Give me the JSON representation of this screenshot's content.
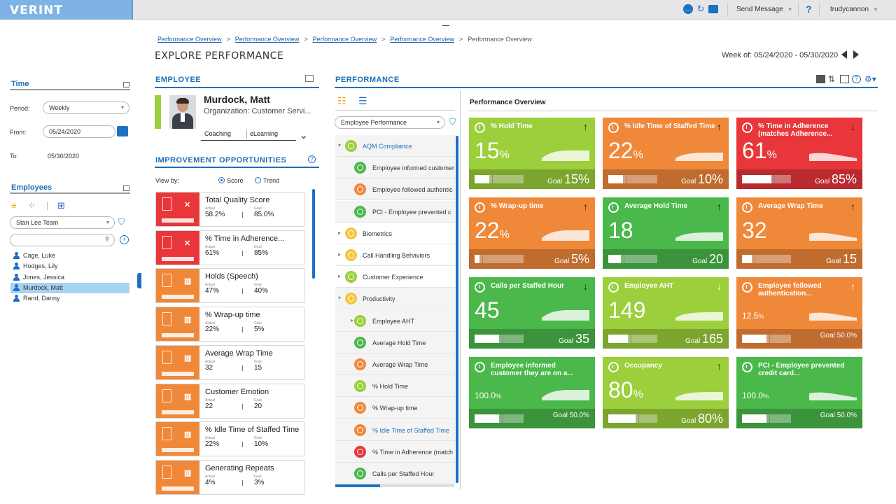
{
  "header": {
    "logo": "VERINT",
    "send_message": "Send Message",
    "help": "?",
    "user": "trudycannon"
  },
  "left": {
    "time_title": "Time",
    "period_label": "Period:",
    "period_value": "Weekly",
    "from_label": "From:",
    "from_value": "05/24/2020",
    "to_label": "To:",
    "to_value": "05/30/2020",
    "employees_title": "Employees",
    "team_value": "Stan Lee Team",
    "search_placeholder": "",
    "employees": [
      "Cage, Luke",
      "Hodges, Lily",
      "Jones, Jessica",
      "Murdock, Matt",
      "Rand, Danny"
    ],
    "selected_employee": "Murdock, Matt"
  },
  "breadcrumbs": [
    "Performance Overview",
    "Performance Overview",
    "Performance Overview",
    "Performance Overview"
  ],
  "breadcrumb_current": "Performance Overview",
  "page_title": "EXPLORE PERFORMANCE",
  "week": "Week of: 05/24/2020 - 05/30/2020",
  "employee": {
    "section_title": "EMPLOYEE",
    "name": "Murdock, Matt",
    "organization": "Organization: Customer Servi...",
    "tabs": [
      "Coaching",
      "eLearning"
    ]
  },
  "improvement": {
    "title": "IMPROVEMENT OPPORTUNITIES",
    "view_by_label": "View by:",
    "view_options": [
      "Score",
      "Trend"
    ],
    "selected_view": "Score",
    "actual_label": "Actual",
    "goal_label": "Goal",
    "items": [
      {
        "name": "Total Quality Score",
        "actual": "58.2%",
        "goal": "85.0%",
        "color": "#e8363a",
        "mark": "✕"
      },
      {
        "name": "% Time in Adherence...",
        "actual": "61%",
        "goal": "85%",
        "color": "#e8363a",
        "mark": "✕"
      },
      {
        "name": "Holds (Speech)",
        "actual": "47%",
        "goal": "40%",
        "color": "#f0883a",
        "mark": "▥"
      },
      {
        "name": "% Wrap-up time",
        "actual": "22%",
        "goal": "5%",
        "color": "#f0883a",
        "mark": "▥"
      },
      {
        "name": "Average Wrap Time",
        "actual": "32",
        "goal": "15",
        "color": "#f0883a",
        "mark": "▥"
      },
      {
        "name": "Customer Emotion",
        "actual": "22",
        "goal": "20",
        "color": "#f0883a",
        "mark": "▥"
      },
      {
        "name": "% Idle Time of Staffed Time",
        "actual": "22%",
        "goal": "10%",
        "color": "#f0883a",
        "mark": "▥"
      },
      {
        "name": "Generating Repeats",
        "actual": "4%",
        "goal": "3%",
        "color": "#f0883a",
        "mark": "▥"
      }
    ]
  },
  "performance": {
    "section_title": "PERFORMANCE",
    "dropdown": "Employee Performance",
    "tree": [
      {
        "label": "AQM Compliance",
        "level": 0,
        "expander": "▾",
        "color": "#9bcf3b",
        "link": true,
        "white": false
      },
      {
        "label": "Employee informed customer",
        "level": 1,
        "expander": "",
        "color": "#4ab84a",
        "link": false,
        "white": false
      },
      {
        "label": "Employee followed authentic",
        "level": 1,
        "expander": "",
        "color": "#f0883a",
        "link": false,
        "white": false
      },
      {
        "label": "PCI - Employee prevented c",
        "level": 1,
        "expander": "",
        "color": "#4ab84a",
        "link": false,
        "white": false
      },
      {
        "label": "Biometrics",
        "level": 0,
        "expander": "▸",
        "color": "#f3c63a",
        "link": false,
        "white": true
      },
      {
        "label": "Call Handling Behaviors",
        "level": 0,
        "expander": "▸",
        "color": "#f3c63a",
        "link": false,
        "white": true
      },
      {
        "label": "Customer Experience",
        "level": 0,
        "expander": "▸",
        "color": "#9bcf3b",
        "link": false,
        "white": true
      },
      {
        "label": "Productivity",
        "level": 0,
        "expander": "▾",
        "color": "#f3c63a",
        "link": false,
        "white": false
      },
      {
        "label": "Employee AHT",
        "level": 1,
        "expander": "▸",
        "color": "#9bcf3b",
        "link": false,
        "white": false
      },
      {
        "label": "Average Hold Time",
        "level": 1,
        "expander": "",
        "color": "#4ab84a",
        "link": false,
        "white": false
      },
      {
        "label": "Average Wrap Time",
        "level": 1,
        "expander": "",
        "color": "#f0883a",
        "link": false,
        "white": false
      },
      {
        "label": "% Hold Time",
        "level": 1,
        "expander": "",
        "color": "#9bcf3b",
        "link": false,
        "white": false
      },
      {
        "label": "% Wrap-up time",
        "level": 1,
        "expander": "",
        "color": "#f0883a",
        "link": false,
        "white": false
      },
      {
        "label": "% Idle Time of Staffed Time",
        "level": 1,
        "expander": "",
        "color": "#f0883a",
        "link": true,
        "white": false
      },
      {
        "label": "% Time in Adherence (match",
        "level": 1,
        "expander": "",
        "color": "#e8363a",
        "link": false,
        "white": false
      },
      {
        "label": "Calls per Staffed Hour",
        "level": 1,
        "expander": "",
        "color": "#4ab84a",
        "link": false,
        "white": false
      }
    ],
    "overview_title": "Performance Overview",
    "goal_label": "Goal",
    "tiles": [
      {
        "name": "% Hold Time",
        "value": "15",
        "unit": "%",
        "goal": "15%",
        "color": "#9bcf3b",
        "arrow": "↑",
        "arrow_color": "#222",
        "progress": 0.3,
        "goal_mark": 0.3,
        "small": false
      },
      {
        "name": "% Idle Time of Staffed Time",
        "value": "22",
        "unit": "%",
        "goal": "10%",
        "color": "#f0883a",
        "arrow": "↑",
        "arrow_color": "#222",
        "progress": 0.3,
        "goal_mark": 0.3,
        "small": false
      },
      {
        "name": "% Time in Adherence (matches Adherence...",
        "value": "61",
        "unit": "%",
        "goal": "85%",
        "color": "#e8363a",
        "arrow": "↓",
        "arrow_color": "#222",
        "progress": 0.6,
        "goal_mark": 0.6,
        "small": false
      },
      {
        "name": "% Wrap-up time",
        "value": "22",
        "unit": "%",
        "goal": "5%",
        "color": "#f0883a",
        "arrow": "↑",
        "arrow_color": "#222",
        "progress": 0.1,
        "goal_mark": 0.1,
        "small": false
      },
      {
        "name": "Average Hold Time",
        "value": "18",
        "unit": "",
        "goal": "20",
        "color": "#4ab84a",
        "arrow": "↑",
        "arrow_color": "#222",
        "progress": 0.25,
        "goal_mark": 0.25,
        "small": false
      },
      {
        "name": "Average Wrap Time",
        "value": "32",
        "unit": "",
        "goal": "15",
        "color": "#f0883a",
        "arrow": "↑",
        "arrow_color": "#222",
        "progress": 0.2,
        "goal_mark": 0.2,
        "small": false
      },
      {
        "name": "Calls per Staffed Hour",
        "value": "45",
        "unit": "",
        "goal": "35",
        "color": "#4ab84a",
        "arrow": "↓",
        "arrow_color": "#222",
        "progress": 0.5,
        "goal_mark": 0.5,
        "small": false
      },
      {
        "name": "Employee AHT",
        "value": "149",
        "unit": "",
        "goal": "165",
        "color": "#9bcf3b",
        "arrow": "↓",
        "arrow_color": "#fff",
        "progress": 0.4,
        "goal_mark": 0.4,
        "small": false
      },
      {
        "name": "Employee followed authentication...",
        "value": "12.5",
        "unit": "%",
        "goal": "50.0%",
        "color": "#f0883a",
        "arrow": "↑",
        "arrow_color": "#fff",
        "progress": 0.5,
        "goal_mark": 0.5,
        "small": true
      },
      {
        "name": "Employee informed customer they are on a...",
        "value": "100.0",
        "unit": "%",
        "goal": "50.0%",
        "color": "#4ab84a",
        "arrow": "",
        "arrow_color": "#fff",
        "progress": 0.5,
        "goal_mark": 0.5,
        "small": true
      },
      {
        "name": "Occupancy",
        "value": "80",
        "unit": "%",
        "goal": "80%",
        "color": "#9bcf3b",
        "arrow": "↑",
        "arrow_color": "#222",
        "progress": 0.55,
        "goal_mark": 0.55,
        "small": false
      },
      {
        "name": "PCI - Employee prevented credit card...",
        "value": "100.0",
        "unit": "%",
        "goal": "50.0%",
        "color": "#4ab84a",
        "arrow": "",
        "arrow_color": "#fff",
        "progress": 0.5,
        "goal_mark": 0.5,
        "small": true
      }
    ]
  }
}
